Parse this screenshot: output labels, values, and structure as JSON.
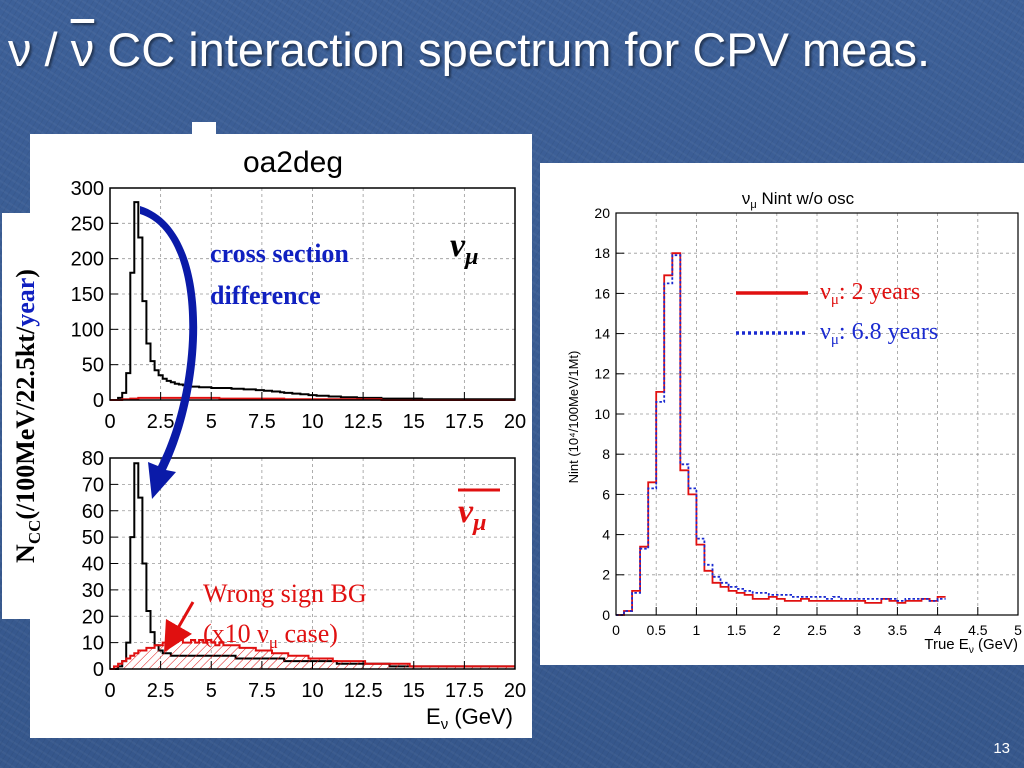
{
  "slide": {
    "title_nu": "ν",
    "title_sep": " / ",
    "title_nubar": "ν",
    "title_rest": " CC interaction spectrum for CPV meas.",
    "page_number": "13"
  },
  "left_panel": {
    "heading": "oa2deg",
    "y_label_main": "N",
    "y_label_sub": "CC",
    "y_label_unit": "(/100MeV/22.5kt/",
    "y_label_year": "year",
    "y_label_close": ")",
    "annotation_xsec_line1": "cross section",
    "annotation_xsec_line2": "difference",
    "numu_label": "ν",
    "numu_sub": "μ",
    "numubar_label": "ν",
    "numubar_sub": "μ",
    "wrong_sign_line1": "Wrong sign BG",
    "wrong_sign_line2_pre": "(x10 ν",
    "wrong_sign_line2_sub": "μ",
    "wrong_sign_line2_post": " case)",
    "x_axis_label": "E",
    "x_axis_sub": "ν",
    "x_axis_unit": " (GeV)",
    "colors": {
      "main": "#000000",
      "wrong_sign": "#e01010",
      "arrow_blue": "#0a1aa8"
    }
  },
  "right_panel": {
    "title_pre": "ν",
    "title_sub": "μ",
    "title_post": " Nint w/o osc",
    "y_axis_label": "Nint (10⁴/100MeV/1Mt)",
    "x_axis_label_pre": "True E",
    "x_axis_label_sub": "ν",
    "x_axis_label_post": " (GeV)",
    "legend": [
      {
        "pre": "ν",
        "sub": "μ",
        "post": ": 2 years",
        "color": "#e01010",
        "style": "solid"
      },
      {
        "pre": "ν",
        "sub": "μ",
        "post": ": 6.8 years",
        "color": "#1a2ad0",
        "style": "dotted"
      }
    ]
  },
  "chart_data": [
    {
      "type": "line",
      "panel": "top-left",
      "xlim": [
        0,
        20
      ],
      "ylim": [
        0,
        300
      ],
      "x_ticks": [
        "0",
        "2.5",
        "5",
        "7.5",
        "10",
        "12.5",
        "15",
        "17.5",
        "20"
      ],
      "y_ticks": [
        "0",
        "50",
        "100",
        "150",
        "200",
        "250",
        "300"
      ],
      "grid": true,
      "bin_edges_start": 0,
      "bin_width": 0.2,
      "series": [
        {
          "color": "#000000",
          "values": [
            0,
            0,
            3,
            10,
            38,
            180,
            280,
            230,
            140,
            80,
            55,
            42,
            35,
            30,
            27,
            25,
            23,
            22,
            21,
            20,
            19,
            19,
            18,
            18,
            18,
            17,
            17,
            17,
            17,
            17,
            16,
            16,
            16,
            15,
            15,
            15,
            14,
            14,
            13,
            13,
            12,
            12,
            11,
            10,
            10,
            9,
            9,
            8,
            8,
            7,
            7,
            6,
            6,
            6,
            5,
            5,
            5,
            4,
            4,
            4,
            4,
            3,
            3,
            3,
            3,
            3,
            3,
            2,
            2,
            2,
            2,
            2,
            2,
            2,
            2,
            2,
            2,
            1,
            1,
            1,
            1,
            1,
            1,
            1,
            1,
            1,
            1,
            1,
            1,
            1,
            1,
            1,
            1,
            1,
            1,
            1,
            1,
            1,
            1,
            1
          ]
        },
        {
          "color": "#e01010",
          "values": [
            0,
            0,
            0,
            1,
            1,
            2,
            2,
            3,
            3,
            3,
            3,
            3,
            3,
            3,
            3,
            3,
            3,
            3,
            3,
            3,
            3,
            3,
            3,
            3,
            3,
            3,
            3,
            2,
            2,
            2,
            2,
            2,
            2,
            2,
            2,
            2,
            2,
            2,
            2,
            2,
            2,
            2,
            2,
            1,
            1,
            1,
            1,
            1,
            1,
            1,
            1,
            1,
            1,
            1,
            1,
            1,
            1,
            1,
            1,
            1,
            1,
            1,
            1,
            1,
            1,
            1,
            1,
            0,
            0,
            0,
            0,
            0,
            0,
            0,
            0,
            0,
            0,
            0,
            0,
            0,
            0,
            0,
            0,
            0,
            0,
            0,
            0,
            0,
            0,
            0,
            0,
            0,
            0,
            0,
            0,
            0,
            0,
            0,
            0,
            0
          ]
        }
      ]
    },
    {
      "type": "line",
      "panel": "bottom-left",
      "xlim": [
        0,
        20
      ],
      "ylim": [
        0,
        80
      ],
      "x_ticks": [
        "0",
        "2.5",
        "5",
        "7.5",
        "10",
        "12.5",
        "15",
        "17.5",
        "20"
      ],
      "y_ticks": [
        "0",
        "10",
        "20",
        "30",
        "40",
        "50",
        "60",
        "70",
        "80"
      ],
      "grid": true,
      "bin_edges_start": 0,
      "bin_width": 0.2,
      "series": [
        {
          "color": "#000000",
          "values": [
            0,
            0,
            1,
            3,
            10,
            50,
            78,
            65,
            40,
            22,
            14,
            9,
            7,
            6,
            6,
            5,
            5,
            5,
            5,
            5,
            5,
            5,
            5,
            5,
            5,
            5,
            5,
            5,
            5,
            5,
            5,
            4,
            4,
            4,
            4,
            4,
            4,
            4,
            4,
            4,
            4,
            4,
            4,
            3,
            3,
            3,
            3,
            3,
            3,
            3,
            3,
            3,
            3,
            3,
            3,
            3,
            2,
            2,
            2,
            2,
            2,
            2,
            2,
            2,
            2,
            2,
            2,
            2,
            2,
            1,
            1,
            1,
            1,
            1,
            1,
            1,
            1,
            1,
            1,
            1,
            1,
            1,
            1,
            1,
            1,
            1,
            1,
            1,
            1,
            1,
            1,
            1,
            1,
            1,
            1,
            1,
            1,
            1,
            1,
            1
          ]
        },
        {
          "color": "#e01010",
          "values": [
            0,
            1,
            2,
            3,
            4,
            5,
            6,
            7,
            7,
            8,
            8,
            9,
            9,
            10,
            10,
            10,
            11,
            11,
            10,
            10,
            11,
            10,
            11,
            10,
            11,
            10,
            9,
            10,
            9,
            9,
            9,
            9,
            8,
            8,
            8,
            8,
            7,
            7,
            7,
            7,
            6,
            6,
            6,
            6,
            5,
            5,
            5,
            5,
            5,
            4,
            4,
            4,
            4,
            4,
            4,
            3,
            3,
            3,
            3,
            3,
            3,
            3,
            3,
            2,
            2,
            2,
            2,
            2,
            2,
            2,
            2,
            2,
            2,
            2,
            1,
            1,
            1,
            1,
            1,
            1,
            1,
            1,
            1,
            1,
            1,
            1,
            1,
            1,
            1,
            1,
            1,
            1,
            1,
            1,
            1,
            1,
            1,
            1,
            1,
            1
          ]
        }
      ]
    },
    {
      "type": "line",
      "panel": "right",
      "title": "νμ Nint w/o osc",
      "xlabel": "True Eν (GeV)",
      "ylabel": "Nint (10⁴/100MeV/1Mt)",
      "xlim": [
        0,
        5
      ],
      "ylim": [
        0,
        20
      ],
      "x_ticks": [
        "0",
        "0.5",
        "1",
        "1.5",
        "2",
        "2.5",
        "3",
        "3.5",
        "4",
        "4.5",
        "5"
      ],
      "y_ticks": [
        "0",
        "2",
        "4",
        "6",
        "8",
        "10",
        "12",
        "14",
        "16",
        "18",
        "20"
      ],
      "grid": true,
      "bin_edges_start": 0,
      "bin_width": 0.1,
      "series": [
        {
          "name": "νμ: 2 years",
          "color": "#e01010",
          "values": [
            0,
            0.2,
            1.2,
            3.4,
            6.6,
            11.1,
            16.9,
            18.0,
            7.2,
            6.0,
            3.5,
            2.2,
            1.6,
            1.4,
            1.2,
            1.1,
            1.0,
            0.8,
            0.8,
            0.9,
            0.8,
            0.7,
            0.7,
            0.8,
            0.7,
            0.7,
            0.7,
            0.7,
            0.7,
            0.7,
            0.7,
            0.6,
            0.6,
            0.8,
            0.7,
            0.6,
            0.7,
            0.7,
            0.8,
            0.7,
            0.9
          ]
        },
        {
          "name": "νμ: 6.8 years",
          "color": "#1a2ad0",
          "values": [
            0,
            0.2,
            1.1,
            3.3,
            6.3,
            10.6,
            16.5,
            17.9,
            7.5,
            6.3,
            3.8,
            2.5,
            1.9,
            1.6,
            1.4,
            1.3,
            1.2,
            1.1,
            1.1,
            1.0,
            1.0,
            1.0,
            0.9,
            0.9,
            0.9,
            0.9,
            0.8,
            0.9,
            0.8,
            0.8,
            0.8,
            0.8,
            0.8,
            0.8,
            0.8,
            0.7,
            0.8,
            0.8,
            0.8,
            0.7,
            0.8
          ]
        }
      ]
    }
  ]
}
